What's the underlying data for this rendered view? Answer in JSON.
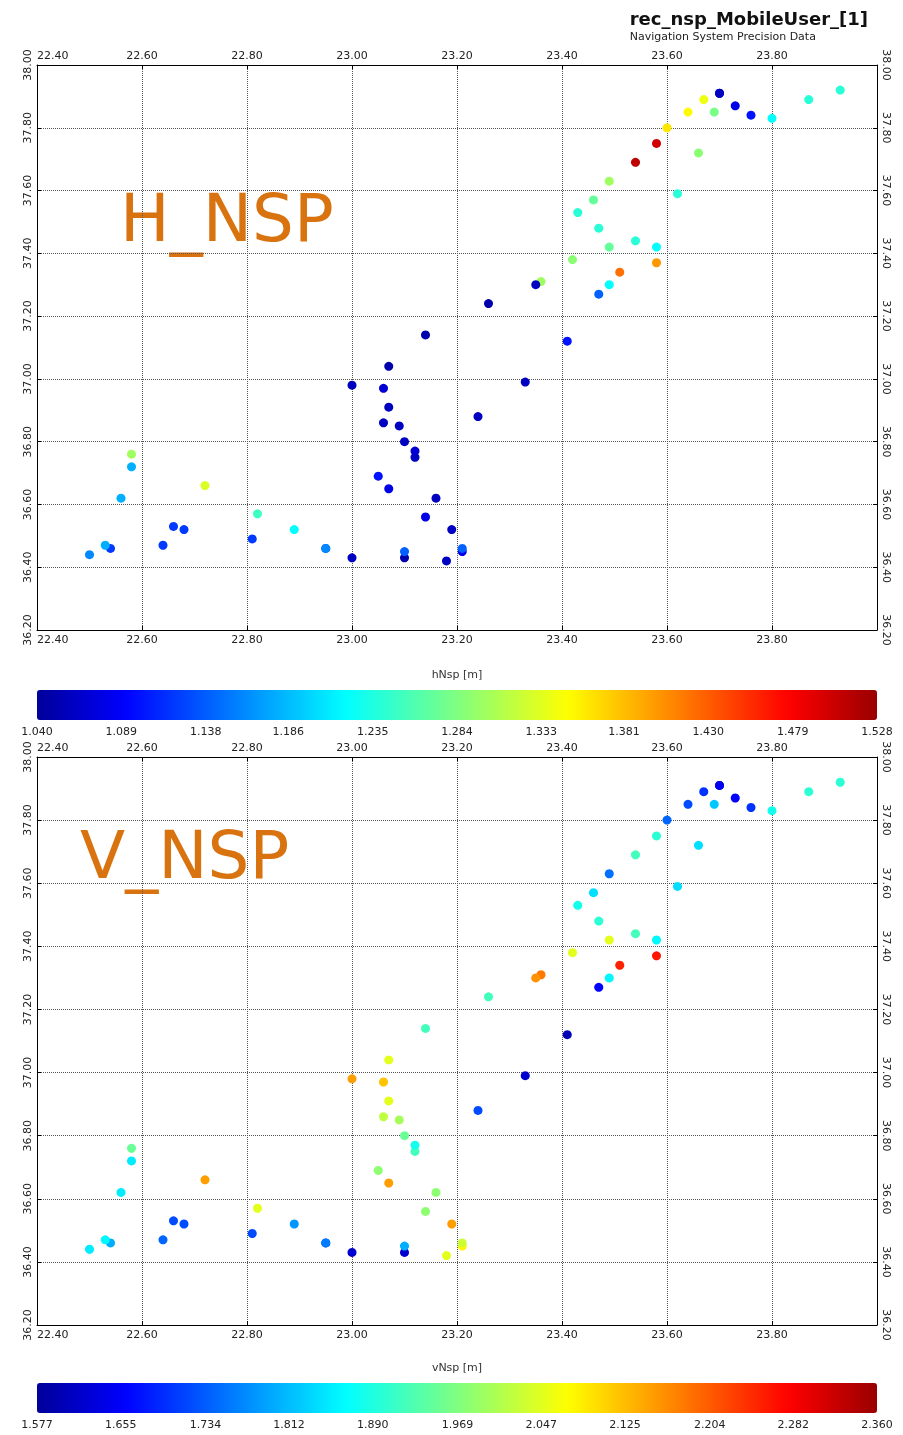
{
  "chart_data": [
    {
      "type": "scatter",
      "title": "rec_nsp_MobileUser_[1]",
      "subtitle": "Navigation System Precision Data",
      "annotations": [
        "H_NSP"
      ],
      "clabel": "hNsp [m]",
      "marker": "circle",
      "grid": true,
      "xlim": [
        22.4,
        24.0
      ],
      "xticks": [
        {
          "value": 22.4,
          "label": "22.40"
        },
        {
          "value": 22.6,
          "label": "22.60"
        },
        {
          "value": 22.8,
          "label": "22.80"
        },
        {
          "value": 23.0,
          "label": "23.00"
        },
        {
          "value": 23.2,
          "label": "23.20"
        },
        {
          "value": 23.4,
          "label": "23.40"
        },
        {
          "value": 23.6,
          "label": "23.60"
        },
        {
          "value": 23.8,
          "label": "23.80"
        }
      ],
      "x2lim": [
        22.4,
        24.0
      ],
      "x2ticks": [
        {
          "value": 22.4,
          "label": "22.40"
        },
        {
          "value": 22.6,
          "label": "22.60"
        },
        {
          "value": 22.8,
          "label": "22.80"
        },
        {
          "value": 23.0,
          "label": "23.00"
        },
        {
          "value": 23.2,
          "label": "23.20"
        },
        {
          "value": 23.4,
          "label": "23.40"
        },
        {
          "value": 23.6,
          "label": "23.60"
        },
        {
          "value": 23.8,
          "label": "23.80"
        }
      ],
      "ylim": [
        36.2,
        38.0
      ],
      "yticks": [
        {
          "value": 36.2,
          "label": "36.20"
        },
        {
          "value": 36.4,
          "label": "36.40"
        },
        {
          "value": 36.6,
          "label": "36.60"
        },
        {
          "value": 36.8,
          "label": "36.80"
        },
        {
          "value": 37.0,
          "label": "37.00"
        },
        {
          "value": 37.2,
          "label": "37.20"
        },
        {
          "value": 37.4,
          "label": "37.40"
        },
        {
          "value": 37.6,
          "label": "37.60"
        },
        {
          "value": 37.8,
          "label": "37.80"
        },
        {
          "value": 38.0,
          "label": "38.00"
        }
      ],
      "y2lim": [
        36.2,
        38.0
      ],
      "y2ticks": [
        {
          "value": 36.2,
          "label": "36.20"
        },
        {
          "value": 36.4,
          "label": "36.40"
        },
        {
          "value": 36.6,
          "label": "36.60"
        },
        {
          "value": 36.8,
          "label": "36.80"
        },
        {
          "value": 37.0,
          "label": "37.00"
        },
        {
          "value": 37.2,
          "label": "37.20"
        },
        {
          "value": 37.4,
          "label": "37.40"
        },
        {
          "value": 37.6,
          "label": "37.60"
        },
        {
          "value": 37.8,
          "label": "37.80"
        },
        {
          "value": 38.0,
          "label": "38.00"
        }
      ],
      "clim": [
        1.04,
        1.528
      ],
      "cticks": [
        {
          "value": 1.04,
          "label": "1.040"
        },
        {
          "value": 1.089,
          "label": "1.089"
        },
        {
          "value": 1.138,
          "label": "1.138"
        },
        {
          "value": 1.186,
          "label": "1.186"
        },
        {
          "value": 1.235,
          "label": "1.235"
        },
        {
          "value": 1.284,
          "label": "1.284"
        },
        {
          "value": 1.333,
          "label": "1.333"
        },
        {
          "value": 1.381,
          "label": "1.381"
        },
        {
          "value": 1.43,
          "label": "1.430"
        },
        {
          "value": 1.479,
          "label": "1.479"
        },
        {
          "value": 1.528,
          "label": "1.528"
        }
      ],
      "x": [
        23.93,
        23.87,
        23.8,
        23.76,
        23.73,
        23.7,
        23.67,
        23.64,
        23.6,
        23.58,
        23.54,
        23.49,
        23.46,
        23.43,
        23.47,
        23.54,
        23.49,
        23.42,
        23.36,
        23.35,
        23.26,
        23.14,
        23.07,
        23.0,
        23.06,
        23.07,
        23.06,
        23.09,
        23.1,
        23.12,
        23.16,
        23.19,
        23.21,
        23.18,
        23.1,
        23.0,
        22.95,
        22.81,
        22.68,
        22.66,
        22.64,
        22.54,
        22.5,
        22.53,
        22.56,
        22.58,
        22.58,
        22.72,
        22.82,
        22.89,
        22.95,
        23.1,
        23.21,
        23.14,
        23.07,
        23.05,
        23.12,
        23.24,
        23.33,
        23.41,
        23.47,
        23.49,
        23.51,
        23.58,
        23.58,
        23.62,
        23.66,
        23.69,
        23.7
      ],
      "values": [
        37.92,
        37.89,
        37.83,
        37.84,
        37.87,
        37.91,
        37.89,
        37.85,
        37.8,
        37.75,
        37.69,
        37.63,
        37.57,
        37.53,
        37.48,
        37.44,
        37.42,
        37.38,
        37.31,
        37.3,
        37.24,
        37.14,
        37.04,
        36.98,
        36.97,
        36.91,
        36.86,
        36.85,
        36.8,
        36.75,
        36.62,
        36.52,
        36.45,
        36.42,
        36.43,
        36.43,
        36.46,
        36.49,
        36.52,
        36.53,
        36.47,
        36.46,
        36.44,
        36.47,
        36.62,
        36.72,
        36.76,
        36.66,
        36.57,
        36.52,
        36.46,
        36.45,
        36.46,
        36.56,
        36.65,
        36.69,
        36.77,
        36.88,
        36.99,
        37.12,
        37.27,
        37.3,
        37.34,
        37.37,
        37.42,
        37.59,
        37.72,
        37.85,
        37.91
      ],
      "cvalues": [
        1.24,
        1.24,
        1.22,
        1.1,
        1.08,
        1.06,
        1.34,
        1.35,
        1.36,
        1.5,
        1.51,
        1.3,
        1.27,
        1.24,
        1.24,
        1.24,
        1.27,
        1.29,
        1.3,
        1.06,
        1.05,
        1.05,
        1.05,
        1.06,
        1.07,
        1.06,
        1.06,
        1.06,
        1.06,
        1.06,
        1.06,
        1.06,
        1.08,
        1.06,
        1.05,
        1.06,
        1.12,
        1.12,
        1.12,
        1.12,
        1.12,
        1.12,
        1.16,
        1.18,
        1.18,
        1.18,
        1.3,
        1.33,
        1.25,
        1.22,
        1.16,
        1.14,
        1.14,
        1.08,
        1.08,
        1.1,
        1.07,
        1.06,
        1.06,
        1.1,
        1.14,
        1.22,
        1.42,
        1.4,
        1.22,
        1.24,
        1.29,
        1.28,
        1.06
      ]
    },
    {
      "type": "scatter",
      "annotations": [
        "V_NSP"
      ],
      "clabel": "vNsp [m]",
      "marker": "circle",
      "grid": true,
      "xlim": [
        22.4,
        24.0
      ],
      "xticks": [
        {
          "value": 22.4,
          "label": "22.40"
        },
        {
          "value": 22.6,
          "label": "22.60"
        },
        {
          "value": 22.8,
          "label": "22.80"
        },
        {
          "value": 23.0,
          "label": "23.00"
        },
        {
          "value": 23.2,
          "label": "23.20"
        },
        {
          "value": 23.4,
          "label": "23.40"
        },
        {
          "value": 23.6,
          "label": "23.60"
        },
        {
          "value": 23.8,
          "label": "23.80"
        }
      ],
      "x2lim": [
        22.4,
        24.0
      ],
      "x2ticks": [
        {
          "value": 22.4,
          "label": "22.40"
        },
        {
          "value": 22.6,
          "label": "22.60"
        },
        {
          "value": 22.8,
          "label": "22.80"
        },
        {
          "value": 23.0,
          "label": "23.00"
        },
        {
          "value": 23.2,
          "label": "23.20"
        },
        {
          "value": 23.4,
          "label": "23.40"
        },
        {
          "value": 23.6,
          "label": "23.60"
        },
        {
          "value": 23.8,
          "label": "23.80"
        }
      ],
      "ylim": [
        36.2,
        38.0
      ],
      "yticks": [
        {
          "value": 36.2,
          "label": "36.20"
        },
        {
          "value": 36.4,
          "label": "36.40"
        },
        {
          "value": 36.6,
          "label": "36.60"
        },
        {
          "value": 36.8,
          "label": "36.80"
        },
        {
          "value": 37.0,
          "label": "37.00"
        },
        {
          "value": 37.2,
          "label": "37.20"
        },
        {
          "value": 37.4,
          "label": "37.40"
        },
        {
          "value": 37.6,
          "label": "37.60"
        },
        {
          "value": 37.8,
          "label": "37.80"
        },
        {
          "value": 38.0,
          "label": "38.00"
        }
      ],
      "y2lim": [
        36.2,
        38.0
      ],
      "y2ticks": [
        {
          "value": 36.2,
          "label": "36.20"
        },
        {
          "value": 36.4,
          "label": "36.40"
        },
        {
          "value": 36.6,
          "label": "36.60"
        },
        {
          "value": 36.8,
          "label": "36.80"
        },
        {
          "value": 37.0,
          "label": "37.00"
        },
        {
          "value": 37.2,
          "label": "37.20"
        },
        {
          "value": 37.4,
          "label": "37.40"
        },
        {
          "value": 37.6,
          "label": "37.60"
        },
        {
          "value": 37.8,
          "label": "37.80"
        },
        {
          "value": 38.0,
          "label": "38.00"
        }
      ],
      "clim": [
        1.577,
        2.36
      ],
      "cticks": [
        {
          "value": 1.577,
          "label": "1.577"
        },
        {
          "value": 1.655,
          "label": "1.655"
        },
        {
          "value": 1.734,
          "label": "1.734"
        },
        {
          "value": 1.812,
          "label": "1.812"
        },
        {
          "value": 1.89,
          "label": "1.890"
        },
        {
          "value": 1.969,
          "label": "1.969"
        },
        {
          "value": 2.047,
          "label": "2.047"
        },
        {
          "value": 2.125,
          "label": "2.125"
        },
        {
          "value": 2.204,
          "label": "2.204"
        },
        {
          "value": 2.282,
          "label": "2.282"
        },
        {
          "value": 2.36,
          "label": "2.360"
        }
      ],
      "x": [
        23.93,
        23.87,
        23.8,
        23.76,
        23.73,
        23.7,
        23.67,
        23.64,
        23.6,
        23.58,
        23.54,
        23.49,
        23.46,
        23.43,
        23.47,
        23.54,
        23.49,
        23.42,
        23.36,
        23.35,
        23.26,
        23.14,
        23.07,
        23.0,
        23.06,
        23.07,
        23.06,
        23.09,
        23.1,
        23.12,
        23.16,
        23.19,
        23.21,
        23.18,
        23.1,
        23.0,
        22.95,
        22.81,
        22.68,
        22.66,
        22.64,
        22.54,
        22.5,
        22.53,
        22.56,
        22.58,
        22.58,
        22.72,
        22.82,
        22.89,
        22.95,
        23.1,
        23.21,
        23.14,
        23.07,
        23.05,
        23.12,
        23.24,
        23.33,
        23.41,
        23.47,
        23.49,
        23.51,
        23.58,
        23.58,
        23.62,
        23.66,
        23.69,
        23.7
      ],
      "values": [
        37.92,
        37.89,
        37.83,
        37.84,
        37.87,
        37.91,
        37.89,
        37.85,
        37.8,
        37.75,
        37.69,
        37.63,
        37.57,
        37.53,
        37.48,
        37.44,
        37.42,
        37.38,
        37.31,
        37.3,
        37.24,
        37.14,
        37.04,
        36.98,
        36.97,
        36.91,
        36.86,
        36.85,
        36.8,
        36.75,
        36.62,
        36.52,
        36.45,
        36.42,
        36.43,
        36.43,
        36.46,
        36.49,
        36.52,
        36.53,
        36.47,
        36.46,
        36.44,
        36.47,
        36.62,
        36.72,
        36.76,
        36.66,
        36.57,
        36.52,
        36.46,
        36.45,
        36.46,
        36.56,
        36.65,
        36.69,
        36.77,
        36.88,
        36.99,
        37.12,
        37.27,
        37.3,
        37.34,
        37.37,
        37.42,
        37.59,
        37.72,
        37.85,
        37.91
      ],
      "cvalues": [
        1.9,
        1.9,
        1.88,
        1.7,
        1.66,
        1.62,
        1.7,
        1.72,
        1.74,
        1.9,
        1.92,
        1.75,
        1.84,
        1.88,
        1.9,
        1.92,
        2.05,
        2.05,
        2.18,
        2.16,
        1.92,
        1.92,
        2.05,
        2.15,
        2.12,
        2.05,
        2.02,
        2.0,
        1.95,
        1.92,
        1.98,
        2.15,
        2.08,
        2.05,
        1.62,
        1.62,
        1.7,
        1.72,
        1.72,
        1.72,
        1.74,
        1.8,
        1.85,
        1.86,
        1.85,
        1.85,
        1.95,
        2.15,
        2.05,
        1.78,
        1.76,
        1.8,
        2.03,
        1.98,
        2.15,
        1.98,
        1.88,
        1.72,
        1.62,
        1.6,
        1.66,
        1.86,
        2.25,
        2.26,
        1.86,
        1.84,
        1.84,
        1.82,
        1.65
      ]
    }
  ]
}
